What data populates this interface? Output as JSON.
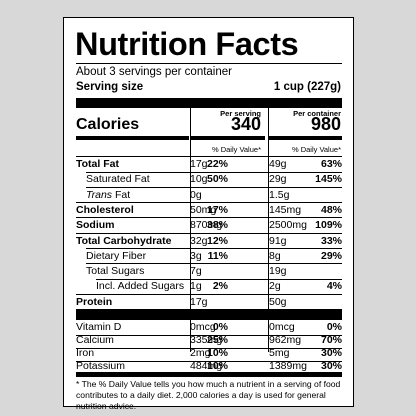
{
  "title": "Nutrition Facts",
  "servings_per_container": "About 3 servings per container",
  "serving_size_label": "Serving size",
  "serving_size_value": "1 cup (227g)",
  "col_headers": {
    "per_serving": "Per serving",
    "per_container": "Per container"
  },
  "calories": {
    "label": "Calories",
    "per_serving": "340",
    "per_container": "980"
  },
  "dv_header": "% Daily Value*",
  "rows": [
    {
      "name": "Total Fat",
      "bold": true,
      "indent": 0,
      "italic_prefix": "",
      "amt1": "17g",
      "dv1": "22%",
      "amt2": "49g",
      "dv2": "63%"
    },
    {
      "name": "Saturated Fat",
      "bold": false,
      "indent": 10,
      "italic_prefix": "",
      "amt1": "10g",
      "dv1": "50%",
      "amt2": "29g",
      "dv2": "145%"
    },
    {
      "name": "Fat",
      "bold": false,
      "indent": 10,
      "italic_prefix": "Trans",
      "amt1": "0g",
      "dv1": "",
      "amt2": "1.5g",
      "dv2": ""
    },
    {
      "name": "Cholesterol",
      "bold": true,
      "indent": 0,
      "italic_prefix": "",
      "amt1": "50mg",
      "dv1": "17%",
      "amt2": "145mg",
      "dv2": "48%"
    },
    {
      "name": "Sodium",
      "bold": true,
      "indent": 0,
      "italic_prefix": "",
      "amt1": "870mg",
      "dv1": "38%",
      "amt2": "2500mg",
      "dv2": "109%"
    },
    {
      "name": "Total Carbohydrate",
      "bold": true,
      "indent": 0,
      "italic_prefix": "",
      "amt1": "32g",
      "dv1": "12%",
      "amt2": "91g",
      "dv2": "33%"
    },
    {
      "name": "Dietary Fiber",
      "bold": false,
      "indent": 10,
      "italic_prefix": "",
      "amt1": "3g",
      "dv1": "11%",
      "amt2": "8g",
      "dv2": "29%"
    },
    {
      "name": "Total Sugars",
      "bold": false,
      "indent": 10,
      "italic_prefix": "",
      "amt1": "7g",
      "dv1": "",
      "amt2": "19g",
      "dv2": ""
    },
    {
      "name": "Incl. Added Sugars",
      "bold": false,
      "indent": 20,
      "italic_prefix": "",
      "amt1": "1g",
      "dv1": "2%",
      "amt2": "2g",
      "dv2": "4%"
    },
    {
      "name": "Protein",
      "bold": true,
      "indent": 0,
      "italic_prefix": "",
      "amt1": "17g",
      "dv1": "",
      "amt2": "50g",
      "dv2": ""
    }
  ],
  "vitamins": [
    {
      "name": "Vitamin D",
      "amt1": "0mcg",
      "dv1": "0%",
      "amt2": "0mcg",
      "dv2": "0%"
    },
    {
      "name": "Calcium",
      "amt1": "335mg",
      "dv1": "25%",
      "amt2": "962mg",
      "dv2": "70%"
    },
    {
      "name": "Iron",
      "amt1": "2mg",
      "dv1": "10%",
      "amt2": "5mg",
      "dv2": "30%"
    },
    {
      "name": "Potassium",
      "amt1": "484mg",
      "dv1": "10%",
      "amt2": "1389mg",
      "dv2": "30%"
    }
  ],
  "footnote": "* The % Daily Value tells you how much a nutrient in a serving of food contributes to a daily diet. 2,000 calories a day is used for general nutrition advice."
}
